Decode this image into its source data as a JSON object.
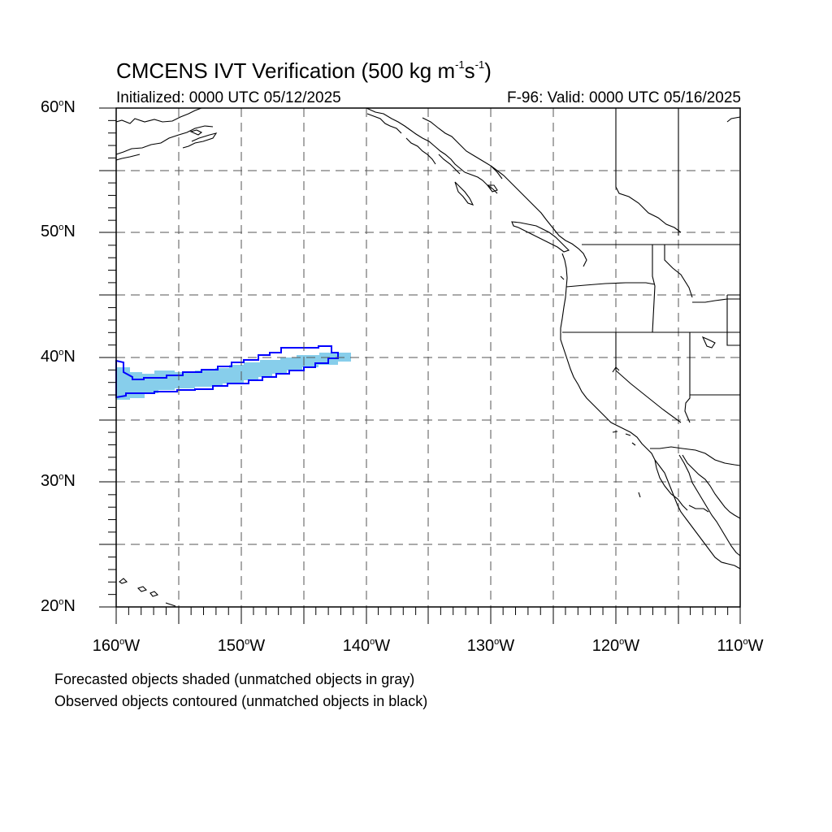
{
  "header": {
    "title_prefix": "CMCENS IVT Verification (500 kg m",
    "title_sup1": "-1",
    "title_mid": "s",
    "title_sup2": "-1",
    "title_suffix": ")",
    "initialized": "Initialized: 0000 UTC 05/12/2025",
    "valid": "F-96: Valid: 0000 UTC 05/16/2025"
  },
  "map": {
    "lon_range": [
      -160,
      -110
    ],
    "lat_range": [
      20,
      60
    ],
    "grid_spacing_deg": 5,
    "grid_style": "dashed gray",
    "forecast_fill_color": "#87ceeb",
    "observed_contour_color": "#0000ff",
    "coast_color": "#000000"
  },
  "axes": {
    "lat_labels": [
      {
        "deg": "60",
        "unit": "o",
        "hemi": "N"
      },
      {
        "deg": "50",
        "unit": "o",
        "hemi": "N"
      },
      {
        "deg": "40",
        "unit": "o",
        "hemi": "N"
      },
      {
        "deg": "30",
        "unit": "o",
        "hemi": "N"
      },
      {
        "deg": "20",
        "unit": "o",
        "hemi": "N"
      }
    ],
    "lon_labels": [
      {
        "deg": "160",
        "unit": "o",
        "hemi": "W"
      },
      {
        "deg": "150",
        "unit": "o",
        "hemi": "W"
      },
      {
        "deg": "140",
        "unit": "o",
        "hemi": "W"
      },
      {
        "deg": "130",
        "unit": "o",
        "hemi": "W"
      },
      {
        "deg": "120",
        "unit": "o",
        "hemi": "W"
      },
      {
        "deg": "110",
        "unit": "o",
        "hemi": "W"
      }
    ]
  },
  "legend": {
    "line1": "Forecasted objects shaded (unmatched objects in gray)",
    "line2": "Observed objects contoured (unmatched objects in black)"
  }
}
